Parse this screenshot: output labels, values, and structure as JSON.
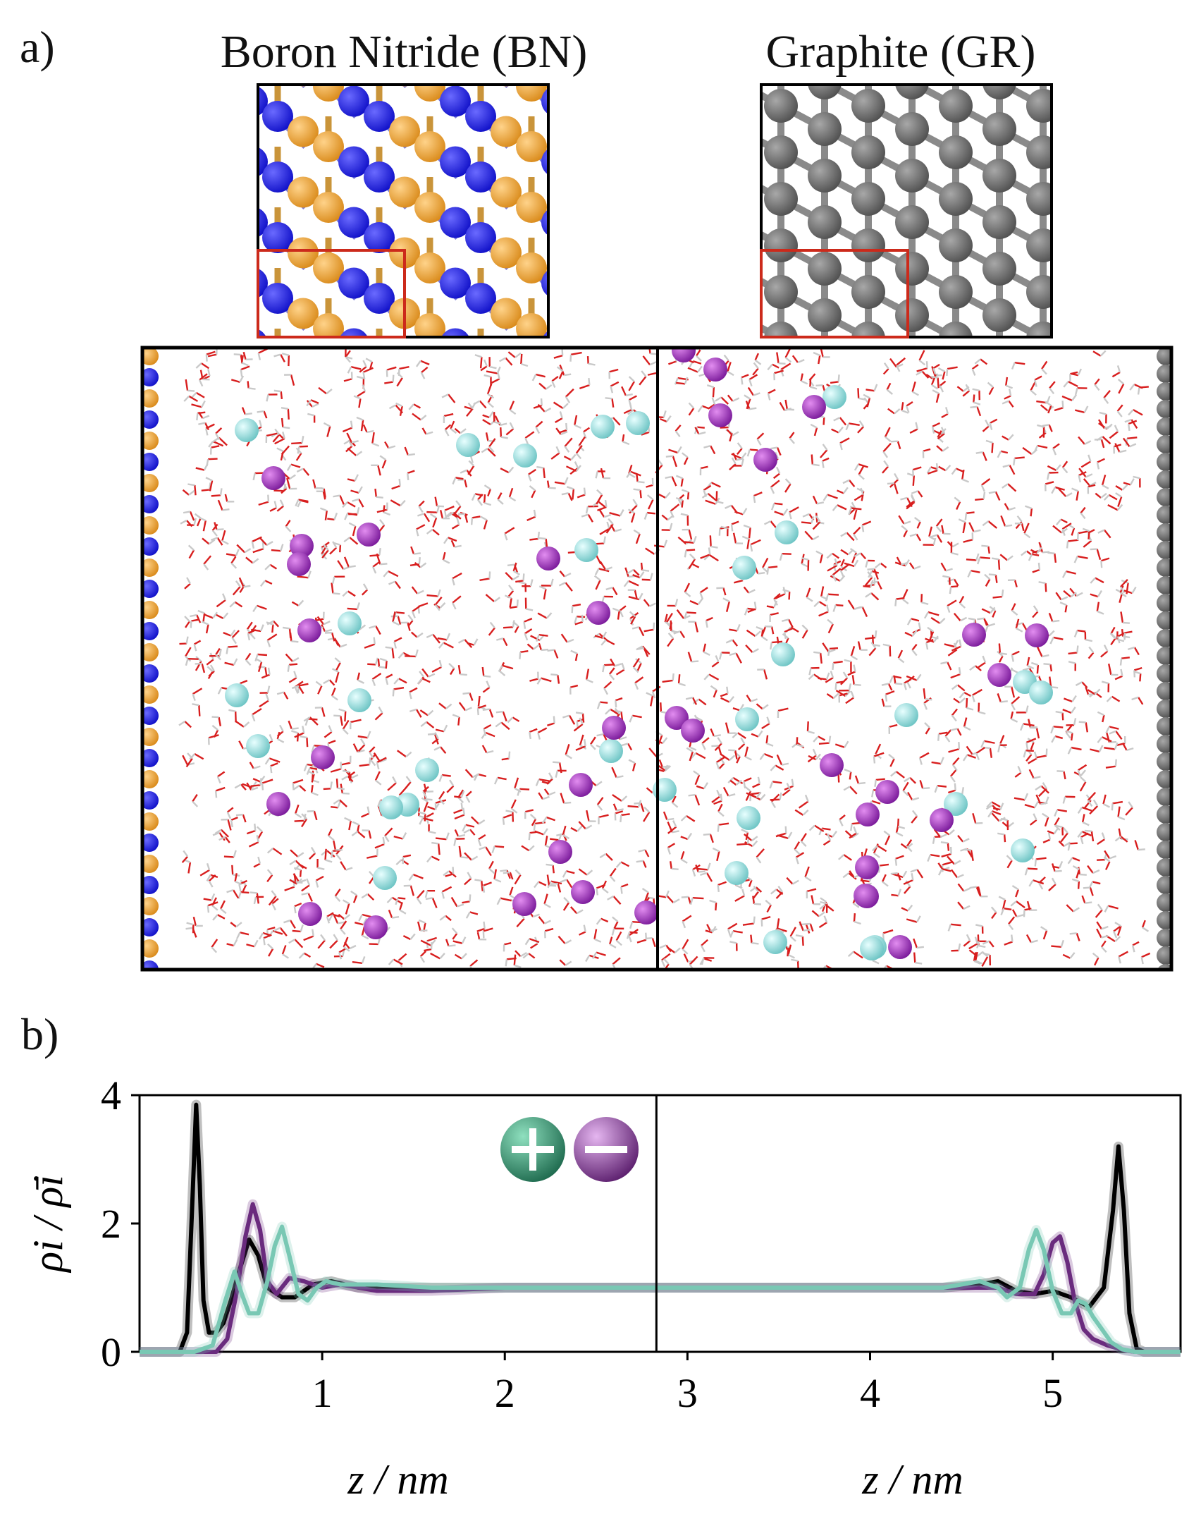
{
  "panel_a": {
    "label": "a)",
    "left_title": "Boron Nitride (BN)",
    "right_title": "Graphite (GR)",
    "colors": {
      "boron": "#ec9a2e",
      "nitrogen": "#1f1fe6",
      "carbon": "#6b6b6b",
      "highlight": "#cc2a1b",
      "cation": "#9fe0e0",
      "anion": "#9a2ab8",
      "water_o": "#d81e1e",
      "water_h": "#c9c9c9"
    }
  },
  "panel_b": {
    "label": "b)",
    "ylabel": "ρi / ρ̄i",
    "xlabel_left": "z / nm",
    "xlabel_right": "z / nm",
    "legend_icons": [
      "plus-icon",
      "minus-icon"
    ],
    "chart_data": {
      "type": "line",
      "xlim": [
        0.0,
        5.7
      ],
      "ylim": [
        0,
        4
      ],
      "xticks": [
        "1",
        "2",
        "3",
        "4",
        "5"
      ],
      "yticks": [
        "0",
        "2",
        "4"
      ],
      "divider_x": 2.83,
      "series": [
        {
          "color": "#000000",
          "x": [
            0.22,
            0.26,
            0.29,
            0.31,
            0.33,
            0.35,
            0.38,
            0.42,
            0.46,
            0.5,
            0.55,
            0.6,
            0.65,
            0.7,
            0.78,
            0.85,
            0.95,
            1.05,
            1.2,
            1.4,
            1.7,
            2.0,
            2.4,
            2.83,
            3.2,
            3.6,
            4.0,
            4.4,
            4.6,
            4.7,
            4.8,
            4.9,
            5.0,
            5.1,
            5.2,
            5.28,
            5.33,
            5.36,
            5.39,
            5.42,
            5.46,
            5.5
          ],
          "values": [
            0.0,
            0.3,
            2.4,
            3.85,
            2.6,
            0.8,
            0.3,
            0.3,
            0.45,
            0.8,
            1.3,
            1.75,
            1.5,
            1.0,
            0.85,
            0.85,
            1.05,
            1.1,
            1.0,
            1.0,
            1.0,
            1.0,
            1.0,
            1.0,
            1.0,
            1.0,
            1.0,
            1.0,
            1.05,
            1.1,
            0.95,
            0.9,
            0.95,
            0.85,
            0.7,
            1.0,
            2.2,
            3.2,
            2.2,
            0.6,
            0.05,
            0.0
          ]
        },
        {
          "color": "#6a2b7e",
          "x": [
            0.42,
            0.48,
            0.53,
            0.58,
            0.62,
            0.66,
            0.7,
            0.75,
            0.82,
            0.9,
            1.0,
            1.1,
            1.3,
            1.6,
            2.0,
            2.4,
            2.83,
            3.2,
            3.6,
            4.0,
            4.4,
            4.6,
            4.7,
            4.8,
            4.9,
            4.95,
            5.0,
            5.04,
            5.08,
            5.12,
            5.17,
            5.22,
            5.3,
            5.4,
            5.45
          ],
          "values": [
            0.0,
            0.2,
            0.9,
            1.8,
            2.3,
            1.9,
            1.1,
            0.9,
            1.15,
            1.1,
            1.0,
            1.05,
            0.95,
            0.95,
            1.0,
            1.0,
            1.0,
            1.0,
            1.0,
            1.0,
            1.0,
            1.0,
            1.0,
            0.9,
            0.9,
            1.2,
            1.7,
            1.8,
            1.4,
            0.8,
            0.35,
            0.2,
            0.1,
            0.02,
            0.0
          ]
        },
        {
          "color": "#79c8b4",
          "x": [
            0.3,
            0.4,
            0.47,
            0.52,
            0.56,
            0.6,
            0.65,
            0.7,
            0.74,
            0.78,
            0.82,
            0.87,
            0.92,
            0.97,
            1.02,
            1.1,
            1.3,
            1.6,
            2.0,
            2.4,
            2.83,
            3.2,
            3.6,
            4.0,
            4.4,
            4.6,
            4.7,
            4.75,
            4.82,
            4.87,
            4.91,
            4.95,
            5.0,
            5.05,
            5.1,
            5.14,
            5.18,
            5.22,
            5.27,
            5.32,
            5.38,
            5.45
          ],
          "values": [
            0.0,
            0.1,
            0.8,
            1.25,
            0.9,
            0.6,
            0.6,
            1.1,
            1.65,
            1.95,
            1.5,
            0.9,
            0.8,
            1.0,
            1.1,
            1.05,
            1.05,
            1.0,
            1.0,
            1.0,
            1.0,
            1.0,
            1.0,
            1.0,
            1.0,
            1.1,
            1.0,
            0.85,
            1.0,
            1.6,
            1.9,
            1.6,
            0.95,
            0.6,
            0.6,
            0.8,
            0.75,
            0.55,
            0.35,
            0.15,
            0.04,
            0.0
          ]
        }
      ]
    }
  }
}
